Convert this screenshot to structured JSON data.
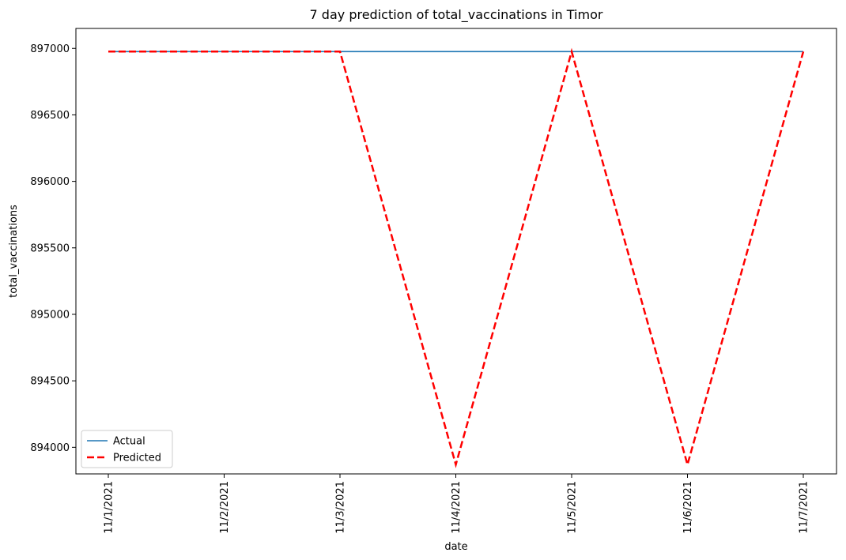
{
  "chart_data": {
    "type": "line",
    "title": "7 day prediction of total_vaccinations in Timor",
    "xlabel": "date",
    "ylabel": "total_vaccinations",
    "categories": [
      "11/1/2021",
      "11/2/2021",
      "11/3/2021",
      "11/4/2021",
      "11/5/2021",
      "11/6/2021",
      "11/7/2021"
    ],
    "ylim": [
      893800,
      897150
    ],
    "yticks": [
      894000,
      894500,
      895000,
      895500,
      896000,
      896500,
      897000
    ],
    "grid": false,
    "legend_position": "lower-left",
    "series": [
      {
        "name": "Actual",
        "color": "#1f77b4",
        "style": "solid",
        "values": [
          896976,
          896976,
          896976,
          896976,
          896976,
          896976,
          896976
        ]
      },
      {
        "name": "Predicted",
        "color": "#ff0000",
        "style": "dashed",
        "values": [
          896976,
          896976,
          896976,
          893870,
          896976,
          893870,
          896976
        ]
      }
    ]
  }
}
